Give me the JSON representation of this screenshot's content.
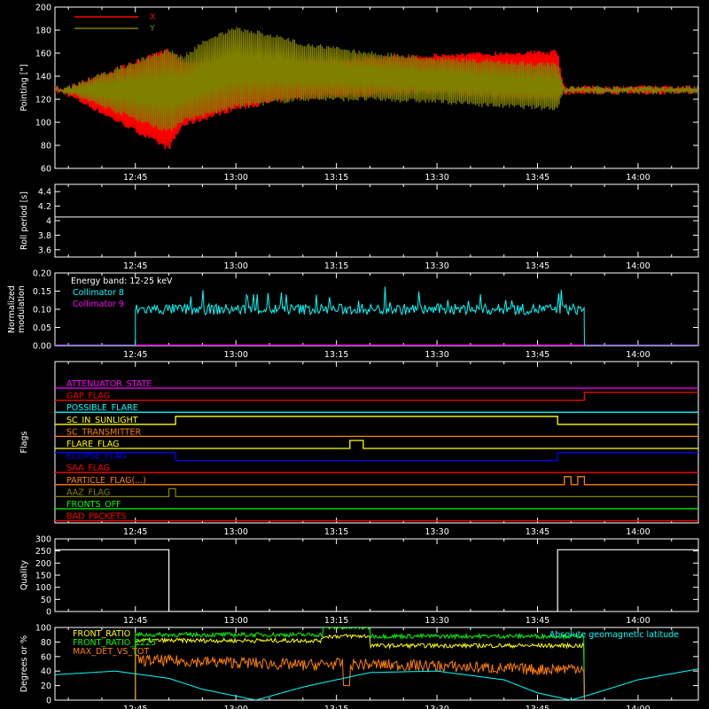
{
  "chart_data": [
    {
      "type": "line",
      "panel": "pointing",
      "ylabel": "Pointing [\"]",
      "ylim": [
        60,
        200
      ],
      "yticks": [
        60,
        80,
        100,
        120,
        140,
        160,
        180,
        200
      ],
      "xlim": [
        "12:33",
        "14:09"
      ],
      "xticks": [
        "12:45",
        "13:00",
        "13:15",
        "13:30",
        "13:45",
        "14:00"
      ],
      "legend_placement": "top-left",
      "series": [
        {
          "name": "X",
          "color": "#ff0000",
          "x": [
            "12:33",
            "12:50",
            "12:52",
            "13:00",
            "13:10",
            "13:20",
            "13:30",
            "13:40",
            "13:48",
            "13:49",
            "14:09"
          ],
          "upper": [
            128,
            165,
            155,
            152,
            156,
            158,
            160,
            162,
            163,
            128,
            128
          ],
          "lower": [
            128,
            75,
            95,
            110,
            120,
            122,
            124,
            120,
            118,
            128,
            128
          ]
        },
        {
          "name": "Y",
          "color": "#808000",
          "x": [
            "12:33",
            "12:50",
            "12:52",
            "12:56",
            "13:00",
            "13:05",
            "13:10",
            "13:20",
            "13:30",
            "13:40",
            "13:48",
            "13:49",
            "14:09"
          ],
          "upper": [
            128,
            165,
            158,
            175,
            183,
            178,
            170,
            162,
            157,
            154,
            152,
            128,
            128
          ],
          "lower": [
            128,
            90,
            100,
            105,
            112,
            115,
            118,
            118,
            116,
            112,
            110,
            128,
            128
          ]
        }
      ]
    },
    {
      "type": "line",
      "panel": "roll-period",
      "ylabel": "Roll period [s]",
      "ylim": [
        3.5,
        4.5
      ],
      "yticks": [
        3.6,
        3.8,
        4.0,
        4.2,
        4.4
      ],
      "xlim": [
        "12:33",
        "14:09"
      ],
      "xticks": [
        "12:45",
        "13:00",
        "13:15",
        "13:30",
        "13:45",
        "14:00"
      ],
      "series": [
        {
          "name": "",
          "color": "#ffffff",
          "x": [
            "12:33",
            "14:09"
          ],
          "y": [
            4.05,
            4.05
          ]
        }
      ]
    },
    {
      "type": "line",
      "panel": "modulation",
      "ylabel_lines": [
        "Normalized",
        "modulation"
      ],
      "ylim": [
        0.0,
        0.2
      ],
      "yticks": [
        "0.00",
        "0.05",
        "0.10",
        "0.15",
        "0.20"
      ],
      "xlim": [
        "12:33",
        "14:09"
      ],
      "xticks": [
        "12:45",
        "13:00",
        "13:15",
        "13:30",
        "13:45",
        "14:00"
      ],
      "annotation": "Energy band: 12-25 keV",
      "series": [
        {
          "name": "Collimator 8",
          "color": "#00ffff",
          "x": [
            "12:33",
            "12:45",
            "12:45",
            "13:52",
            "13:52",
            "14:09"
          ],
          "y": [
            0,
            0,
            0.1,
            0.1,
            0,
            0
          ]
        },
        {
          "name": "Collimator 9",
          "color": "#ff00ff",
          "x": [
            "12:33",
            "14:09"
          ],
          "y": [
            0,
            0
          ]
        }
      ]
    },
    {
      "type": "line",
      "panel": "flags",
      "ylabel": "Flags",
      "xlim": [
        "12:33",
        "14:09"
      ],
      "xticks": [
        "12:45",
        "13:00",
        "13:15",
        "13:30",
        "13:45",
        "14:00"
      ],
      "series": [
        {
          "name": "ATTENUATOR_STATE",
          "color": "#ff00ff",
          "x": [
            "12:33",
            "14:09"
          ],
          "state": [
            0,
            0
          ]
        },
        {
          "name": "GAP_FLAG",
          "color": "#ff0000",
          "x": [
            "12:33",
            "13:52",
            "13:52",
            "14:09"
          ],
          "state": [
            0,
            0,
            1,
            1
          ]
        },
        {
          "name": "POSSIBLE_FLARE",
          "color": "#00ffff",
          "x": [
            "12:33",
            "14:09"
          ],
          "state": [
            0,
            0
          ]
        },
        {
          "name": "SC_IN_SUNLIGHT",
          "color": "#ffff00",
          "x": [
            "12:33",
            "12:51",
            "12:51",
            "13:48",
            "13:48",
            "14:09"
          ],
          "state": [
            0,
            0,
            1,
            1,
            0,
            0
          ]
        },
        {
          "name": "SC_TRANSMITTER",
          "color": "#ff8000",
          "x": [
            "12:33",
            "14:09"
          ],
          "state": [
            0,
            0
          ]
        },
        {
          "name": "FLARE_FLAG",
          "color": "#ffff00",
          "x": [
            "12:33",
            "13:17",
            "13:17",
            "13:19",
            "13:19",
            "14:09"
          ],
          "state": [
            0,
            0,
            1,
            1,
            0,
            0
          ]
        },
        {
          "name": "ECLIPSE_FLAG",
          "color": "#0000ff",
          "x": [
            "12:33",
            "12:51",
            "12:51",
            "13:48",
            "13:48",
            "14:09"
          ],
          "state": [
            1,
            1,
            0,
            0,
            1,
            1
          ]
        },
        {
          "name": "SAA_FLAG",
          "color": "#ff0000",
          "x": [
            "12:33",
            "14:09"
          ],
          "state": [
            0,
            0
          ]
        },
        {
          "name": "PARTICLE_FLAG(...)",
          "color": "#ff8000",
          "x": [
            "12:33",
            "13:49",
            "13:49",
            "13:50",
            "13:50",
            "13:51",
            "13:51",
            "13:52",
            "13:52",
            "14:09"
          ],
          "state": [
            0,
            0,
            1,
            1,
            0,
            0,
            1,
            1,
            0,
            0
          ]
        },
        {
          "name": "AAZ_FLAG",
          "color": "#808000",
          "x": [
            "12:33",
            "12:50",
            "12:50",
            "12:51",
            "12:51",
            "14:09"
          ],
          "state": [
            0,
            0,
            1,
            1,
            0,
            0
          ]
        },
        {
          "name": "FRONTS_OFF",
          "color": "#00ff00",
          "x": [
            "12:33",
            "14:09"
          ],
          "state": [
            0,
            0
          ]
        },
        {
          "name": "BAD_PACKETS",
          "color": "#ff0000",
          "x": [
            "12:33",
            "14:09"
          ],
          "state": [
            0,
            0
          ]
        }
      ]
    },
    {
      "type": "line",
      "panel": "quality",
      "ylabel": "Quality",
      "ylim": [
        0,
        300
      ],
      "yticks": [
        0,
        50,
        100,
        150,
        200,
        250,
        300
      ],
      "xlim": [
        "12:33",
        "14:09"
      ],
      "xticks": [
        "12:45",
        "13:00",
        "13:15",
        "13:30",
        "13:45",
        "14:00"
      ],
      "series": [
        {
          "name": "",
          "color": "#ffffff",
          "x": [
            "12:33",
            "12:50",
            "12:50",
            "13:48",
            "13:48",
            "14:09"
          ],
          "y": [
            255,
            255,
            0,
            0,
            255,
            255
          ]
        }
      ]
    },
    {
      "type": "line",
      "panel": "front-ratio",
      "ylabel": "Degrees or %",
      "ylim": [
        0,
        100
      ],
      "yticks": [
        0,
        20,
        40,
        60,
        80,
        100
      ],
      "xlim": [
        "12:33",
        "14:09"
      ],
      "xticks": [
        "12:45",
        "13:00",
        "13:15",
        "13:30",
        "13:45",
        "14:00"
      ],
      "annotation": "Absolute geomagnetic latitude",
      "annotation_color": "#00ffff",
      "series": [
        {
          "name": "FRONT_RATIO",
          "color": "#ffff00",
          "x": [
            "12:45",
            "13:13",
            "13:13",
            "13:20",
            "13:20",
            "13:52"
          ],
          "y": [
            82,
            82,
            88,
            88,
            75,
            75
          ]
        },
        {
          "name": "FRONT_RATIO_1225",
          "color": "#00ff00",
          "x": [
            "12:45",
            "13:13",
            "13:13",
            "13:20",
            "13:20",
            "13:52"
          ],
          "y": [
            90,
            90,
            100,
            100,
            88,
            88
          ]
        },
        {
          "name": "MAX_DET_VS_TOT",
          "color": "#ff8000",
          "x": [
            "12:45",
            "13:00",
            "13:10",
            "13:15",
            "13:30",
            "13:45",
            "13:52"
          ],
          "y": [
            55,
            52,
            48,
            50,
            47,
            42,
            45
          ]
        },
        {
          "name": "",
          "color": "#00ffff",
          "x": [
            "12:33",
            "12:42",
            "12:50",
            "12:55",
            "13:03",
            "13:10",
            "13:20",
            "13:30",
            "13:40",
            "13:45",
            "13:50",
            "13:53",
            "14:00",
            "14:09"
          ],
          "y": [
            35,
            40,
            30,
            15,
            0,
            18,
            38,
            40,
            28,
            10,
            0,
            8,
            28,
            43
          ]
        }
      ]
    }
  ]
}
